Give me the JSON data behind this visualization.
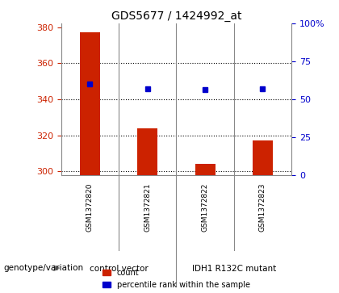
{
  "title": "GDS5677 / 1424992_at",
  "samples": [
    "GSM1372820",
    "GSM1372821",
    "GSM1372822",
    "GSM1372823"
  ],
  "counts": [
    377,
    324,
    304,
    317
  ],
  "percentiles": [
    60,
    57,
    56.5,
    57
  ],
  "ylim_left": [
    298,
    382
  ],
  "ylim_right": [
    0,
    100
  ],
  "yticks_left": [
    300,
    320,
    340,
    360,
    380
  ],
  "yticks_right": [
    0,
    25,
    50,
    75,
    100
  ],
  "ytick_labels_right": [
    "0",
    "25",
    "50",
    "75",
    "100%"
  ],
  "bar_color": "#cc2200",
  "dot_color": "#0000cc",
  "grid_color": "#000000",
  "groups": [
    {
      "label": "control vector",
      "indices": [
        0,
        1
      ]
    },
    {
      "label": "IDH1 R132C mutant",
      "indices": [
        2,
        3
      ]
    }
  ],
  "group_bg_color": "#88ee88",
  "sample_bg_color": "#cccccc",
  "legend_count_label": "count",
  "legend_pct_label": "percentile rank within the sample",
  "genotype_label": "genotype/variation",
  "background_color": "#ffffff"
}
